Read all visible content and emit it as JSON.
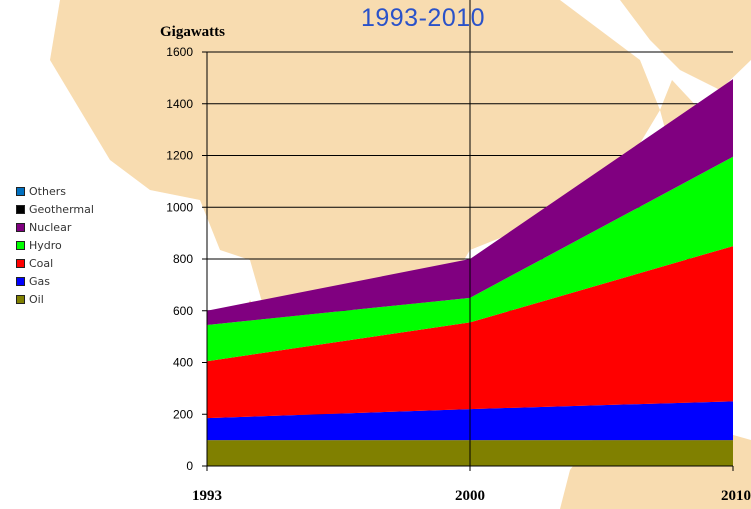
{
  "chart_data": {
    "type": "area",
    "stacked": true,
    "title": "1993-2010",
    "ylabel": "Gigawatts",
    "xlabel": "",
    "x": [
      "1993",
      "2000",
      "2010"
    ],
    "ylim": [
      0,
      1600
    ],
    "yticks": [
      0,
      200,
      400,
      600,
      800,
      1000,
      1200,
      1400,
      1600
    ],
    "grid": "horizontal",
    "legend_position": "left",
    "series": [
      {
        "name": "Oil",
        "color": "#808000",
        "values": [
          100,
          100,
          100
        ]
      },
      {
        "name": "Gas",
        "color": "#0000ff",
        "values": [
          85,
          120,
          150
        ]
      },
      {
        "name": "Coal",
        "color": "#ff0000",
        "values": [
          220,
          335,
          600
        ]
      },
      {
        "name": "Hydro",
        "color": "#00ff00",
        "values": [
          140,
          95,
          345
        ]
      },
      {
        "name": "Nuclear",
        "color": "#800080",
        "values": [
          55,
          150,
          300
        ]
      },
      {
        "name": "Geothermal",
        "color": "#000000",
        "values": [
          0,
          0,
          0
        ]
      },
      {
        "name": "Others",
        "color": "#0070c0",
        "values": [
          0,
          0,
          0
        ]
      }
    ],
    "legend_order": [
      "Others",
      "Geothermal",
      "Nuclear",
      "Hydro",
      "Coal",
      "Gas",
      "Oil"
    ]
  }
}
